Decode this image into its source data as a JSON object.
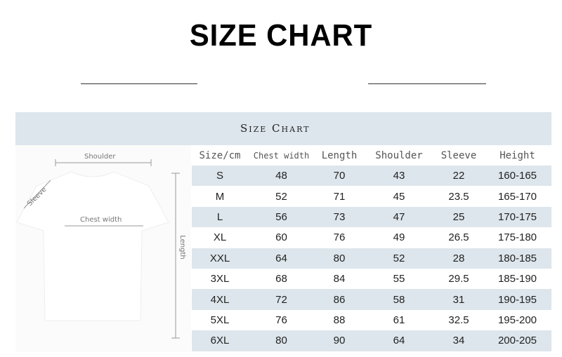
{
  "title": "SIZE CHART",
  "banner": "Size Chart",
  "diagram": {
    "shoulder": "Shoulder",
    "sleeve": "Sleeve",
    "chest": "Chest width",
    "length": "Length"
  },
  "headers": [
    "Size/cm",
    "Chest width",
    "Length",
    "Shoulder",
    "Sleeve",
    "Height"
  ],
  "rows": [
    [
      "S",
      "48",
      "70",
      "43",
      "22",
      "160-165"
    ],
    [
      "M",
      "52",
      "71",
      "45",
      "23.5",
      "165-170"
    ],
    [
      "L",
      "56",
      "73",
      "47",
      "25",
      "170-175"
    ],
    [
      "XL",
      "60",
      "76",
      "49",
      "26.5",
      "175-180"
    ],
    [
      "XXL",
      "64",
      "80",
      "52",
      "28",
      "180-185"
    ],
    [
      "3XL",
      "68",
      "84",
      "55",
      "29.5",
      "185-190"
    ],
    [
      "4XL",
      "72",
      "86",
      "58",
      "31",
      "190-195"
    ],
    [
      "5XL",
      "76",
      "88",
      "61",
      "32.5",
      "195-200"
    ],
    [
      "6XL",
      "80",
      "90",
      "64",
      "34",
      "200-205"
    ]
  ],
  "colors": {
    "band": "#dde6ec"
  }
}
